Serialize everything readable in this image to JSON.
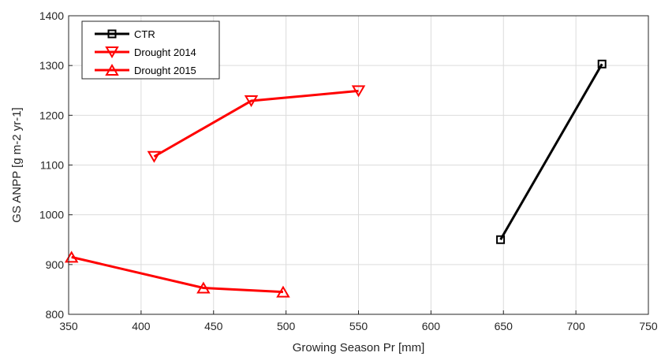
{
  "chart_data": {
    "type": "line",
    "xlabel": "Growing Season Pr [mm]",
    "ylabel": "GS ANPP [g m-2 yr-1]",
    "xlim": [
      350,
      750
    ],
    "ylim": [
      800,
      1400
    ],
    "xticks": [
      350,
      400,
      450,
      500,
      550,
      600,
      650,
      700,
      750
    ],
    "yticks": [
      800,
      900,
      1000,
      1100,
      1200,
      1300,
      1400
    ],
    "grid": true,
    "legend_position": "top-left",
    "series": [
      {
        "name": "CTR",
        "color": "#000000",
        "marker": "square",
        "x": [
          648,
          718
        ],
        "y": [
          950,
          1303
        ]
      },
      {
        "name": "Drought 2014",
        "color": "#ff0000",
        "marker": "triangle-down",
        "x": [
          409,
          476,
          550
        ],
        "y": [
          1117,
          1229,
          1249
        ]
      },
      {
        "name": "Drought 2015",
        "color": "#ff0000",
        "marker": "triangle-up",
        "x": [
          352,
          443,
          498
        ],
        "y": [
          915,
          853,
          845
        ]
      }
    ]
  }
}
